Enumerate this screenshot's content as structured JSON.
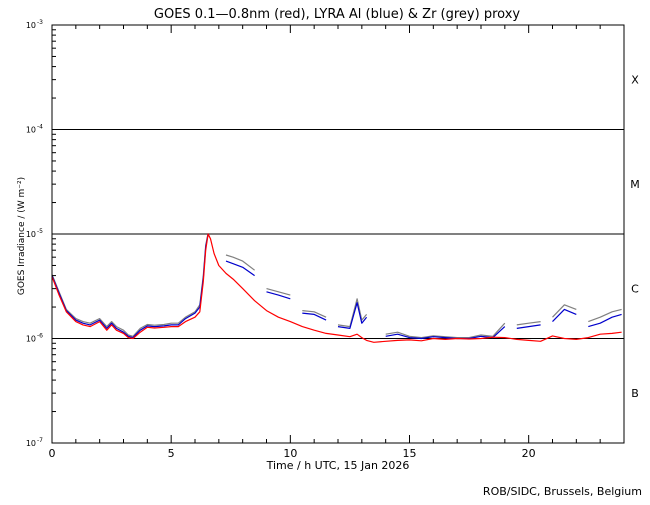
{
  "chart_data": {
    "type": "line",
    "title": "GOES 0.1—0.8nm (red), LYRA Al (blue) & Zr (grey) proxy",
    "xlabel": "Time / h UTC, 15 Jan 2026",
    "ylabel": "GOES Irradiance / (W m⁻²)",
    "credit": "ROB/SIDC, Brussels, Belgium",
    "xlim": [
      0,
      24
    ],
    "ylim": [
      1e-07,
      0.001
    ],
    "yscale": "log",
    "x_ticks": [
      {
        "value": 0,
        "label": "0"
      },
      {
        "value": 5,
        "label": "5"
      },
      {
        "value": 10,
        "label": "10"
      },
      {
        "value": 15,
        "label": "15"
      },
      {
        "value": 20,
        "label": "20"
      }
    ],
    "y_ticks": [
      {
        "value": 1e-07,
        "base": "10",
        "exp": "-7"
      },
      {
        "value": 1e-06,
        "base": "10",
        "exp": "-6"
      },
      {
        "value": 1e-05,
        "base": "10",
        "exp": "-5"
      },
      {
        "value": 0.0001,
        "base": "10",
        "exp": "-4"
      },
      {
        "value": 0.001,
        "base": "10",
        "exp": "-3"
      }
    ],
    "class_lines": [
      1e-06,
      1e-05,
      0.0001
    ],
    "class_labels": [
      {
        "label": "X",
        "y": 0.0003
      },
      {
        "label": "M",
        "y": 3e-05
      },
      {
        "label": "C",
        "y": 3e-06
      },
      {
        "label": "B",
        "y": 3e-07
      }
    ],
    "grid": false,
    "series": [
      {
        "name": "GOES 0.1—0.8nm",
        "color": "#ff0000",
        "x": [
          0,
          0.3,
          0.6,
          1.0,
          1.3,
          1.6,
          2.0,
          2.3,
          2.5,
          2.7,
          3.0,
          3.2,
          3.4,
          3.7,
          4.0,
          4.3,
          4.7,
          5.0,
          5.3,
          5.6,
          6.0,
          6.2,
          6.35,
          6.45,
          6.55,
          6.65,
          6.8,
          7.0,
          7.3,
          7.6,
          8.0,
          8.5,
          9.0,
          9.5,
          10.0,
          10.5,
          11.0,
          11.5,
          12.0,
          12.5,
          12.8,
          13.0,
          13.2,
          13.5,
          14.0,
          14.5,
          15.0,
          15.5,
          16.0,
          16.5,
          17.0,
          17.5,
          18.0,
          18.5,
          19.0,
          19.5,
          20.0,
          20.5,
          21.0,
          21.5,
          22.0,
          22.5,
          23.0,
          23.5,
          23.9
        ],
        "y": [
          3.9e-06,
          2.6e-06,
          1.8e-06,
          1.45e-06,
          1.35e-06,
          1.3e-06,
          1.45e-06,
          1.2e-06,
          1.35e-06,
          1.2e-06,
          1.12e-06,
          1.02e-06,
          1e-06,
          1.15e-06,
          1.28e-06,
          1.26e-06,
          1.28e-06,
          1.3e-06,
          1.3e-06,
          1.45e-06,
          1.6e-06,
          1.8e-06,
          3.5e-06,
          7e-06,
          1e-05,
          9e-06,
          6.5e-06,
          5e-06,
          4.2e-06,
          3.7e-06,
          3e-06,
          2.3e-06,
          1.85e-06,
          1.6e-06,
          1.45e-06,
          1.3e-06,
          1.2e-06,
          1.12e-06,
          1.08e-06,
          1.04e-06,
          1.1e-06,
          1.02e-06,
          9.6e-07,
          9.2e-07,
          9.4e-07,
          9.6e-07,
          9.7e-07,
          9.5e-07,
          1e-06,
          9.8e-07,
          1e-06,
          9.9e-07,
          1e-06,
          1.03e-06,
          1.02e-06,
          9.8e-07,
          9.6e-07,
          9.4e-07,
          1.06e-06,
          1e-06,
          9.8e-07,
          1.02e-06,
          1.1e-06,
          1.12e-06,
          1.15e-06
        ]
      },
      {
        "name": "LYRA Al proxy",
        "color": "#0000cc",
        "x": [
          0,
          0.3,
          0.6,
          1.0,
          1.3,
          1.6,
          2.0,
          2.3,
          2.5,
          2.7,
          3.0,
          3.2,
          3.4,
          3.7,
          4.0,
          4.3,
          4.7,
          5.0,
          5.3,
          5.6,
          6.0,
          6.2,
          6.35,
          6.45,
          6.55,
          null,
          7.3,
          7.6,
          8.0,
          8.5,
          null,
          9.0,
          9.5,
          10.0,
          null,
          10.5,
          11.0,
          11.5,
          null,
          12.0,
          12.5,
          12.8,
          13.0,
          13.2,
          null,
          14.0,
          14.5,
          15.0,
          15.5,
          16.0,
          16.5,
          17.0,
          17.5,
          18.0,
          18.5,
          19.0,
          null,
          19.5,
          20.0,
          20.5,
          null,
          21.0,
          21.5,
          22.0,
          null,
          22.5,
          23.0,
          23.5,
          23.9
        ],
        "y": [
          4e-06,
          2.7e-06,
          1.85e-06,
          1.5e-06,
          1.4e-06,
          1.35e-06,
          1.5e-06,
          1.25e-06,
          1.4e-06,
          1.25e-06,
          1.15e-06,
          1.05e-06,
          1.02e-06,
          1.2e-06,
          1.32e-06,
          1.3e-06,
          1.32e-06,
          1.35e-06,
          1.35e-06,
          1.55e-06,
          1.75e-06,
          2e-06,
          3.8e-06,
          7.5e-06,
          1e-05,
          null,
          5.5e-06,
          5.2e-06,
          4.8e-06,
          4e-06,
          null,
          2.8e-06,
          2.6e-06,
          2.4e-06,
          null,
          1.75e-06,
          1.7e-06,
          1.5e-06,
          null,
          1.3e-06,
          1.25e-06,
          2.2e-06,
          1.4e-06,
          1.6e-06,
          null,
          1.05e-06,
          1.1e-06,
          1.02e-06,
          1e-06,
          1.04e-06,
          1.02e-06,
          1e-06,
          1e-06,
          1.05e-06,
          1.02e-06,
          1.3e-06,
          null,
          1.25e-06,
          1.3e-06,
          1.35e-06,
          null,
          1.45e-06,
          1.9e-06,
          1.7e-06,
          null,
          1.3e-06,
          1.4e-06,
          1.6e-06,
          1.7e-06
        ]
      },
      {
        "name": "LYRA Zr proxy",
        "color": "#808080",
        "x": [
          0,
          0.3,
          0.6,
          1.0,
          1.3,
          1.6,
          2.0,
          2.3,
          2.5,
          2.7,
          3.0,
          3.2,
          3.4,
          3.7,
          4.0,
          4.3,
          4.7,
          5.0,
          5.3,
          5.6,
          6.0,
          6.2,
          6.35,
          6.45,
          6.55,
          null,
          7.3,
          7.6,
          8.0,
          8.5,
          null,
          9.0,
          9.5,
          10.0,
          null,
          10.5,
          11.0,
          11.5,
          null,
          12.0,
          12.5,
          12.8,
          13.0,
          13.2,
          null,
          14.0,
          14.5,
          15.0,
          15.5,
          16.0,
          16.5,
          17.0,
          17.5,
          18.0,
          18.5,
          19.0,
          null,
          19.5,
          20.0,
          20.5,
          null,
          21.0,
          21.5,
          22.0,
          null,
          22.5,
          23.0,
          23.5,
          23.9
        ],
        "y": [
          4.1e-06,
          2.8e-06,
          1.9e-06,
          1.55e-06,
          1.45e-06,
          1.4e-06,
          1.55e-06,
          1.3e-06,
          1.45e-06,
          1.3e-06,
          1.2e-06,
          1.08e-06,
          1.05e-06,
          1.25e-06,
          1.36e-06,
          1.34e-06,
          1.36e-06,
          1.4e-06,
          1.4e-06,
          1.6e-06,
          1.8e-06,
          2.1e-06,
          4e-06,
          7.8e-06,
          1.02e-05,
          null,
          6.3e-06,
          6e-06,
          5.5e-06,
          4.5e-06,
          null,
          3e-06,
          2.8e-06,
          2.6e-06,
          null,
          1.85e-06,
          1.8e-06,
          1.6e-06,
          null,
          1.35e-06,
          1.3e-06,
          2.4e-06,
          1.5e-06,
          1.7e-06,
          null,
          1.1e-06,
          1.15e-06,
          1.05e-06,
          1.02e-06,
          1.06e-06,
          1.04e-06,
          1.02e-06,
          1.02e-06,
          1.08e-06,
          1.05e-06,
          1.4e-06,
          null,
          1.35e-06,
          1.4e-06,
          1.45e-06,
          null,
          1.6e-06,
          2.1e-06,
          1.9e-06,
          null,
          1.45e-06,
          1.6e-06,
          1.8e-06,
          1.9e-06
        ]
      }
    ]
  }
}
